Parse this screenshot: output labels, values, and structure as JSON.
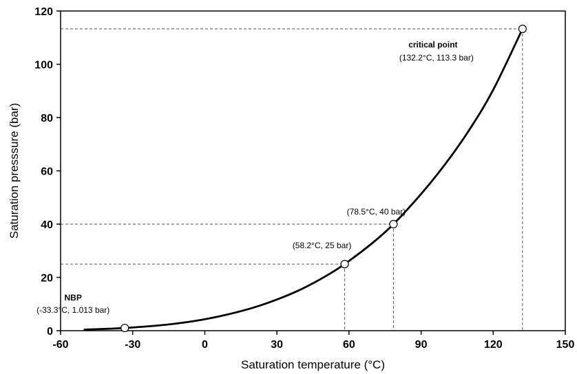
{
  "chart_data": {
    "type": "line",
    "xlabel": "Saturation temperature (°C)",
    "ylabel": "Saturation presssure (bar)",
    "xlim": [
      -60,
      150
    ],
    "ylim": [
      0,
      120
    ],
    "x_ticks": [
      -60,
      -30,
      0,
      30,
      60,
      90,
      120,
      150
    ],
    "y_ticks": [
      0,
      20,
      40,
      60,
      80,
      100,
      120
    ],
    "grid": false,
    "legend": "none",
    "series": [
      {
        "x": [
          -50,
          -40,
          -33.3,
          -20,
          -10,
          0,
          10,
          20,
          30,
          40,
          50,
          58.2,
          70,
          78.5,
          90,
          100,
          110,
          120,
          132.2
        ],
        "y": [
          0.41,
          0.72,
          1.013,
          1.9,
          2.9,
          4.3,
          6.2,
          8.6,
          11.7,
          15.5,
          20.3,
          25,
          33.1,
          40,
          51.3,
          62.5,
          75.3,
          90.4,
          113.3
        ],
        "color": "#000000"
      }
    ],
    "markers": [
      {
        "x": -33.3,
        "y": 1.013,
        "title": "NBP",
        "label": "(-33.3°C, 1.013 bar)",
        "guides": false
      },
      {
        "x": 58.2,
        "y": 25,
        "title": "",
        "label": "(58.2°C, 25 bar)",
        "guides": true
      },
      {
        "x": 78.5,
        "y": 40,
        "title": "",
        "label": "(78.5°C, 40 bar)",
        "guides": true
      },
      {
        "x": 132.2,
        "y": 113.3,
        "title": "critical point",
        "label": "(132.2°C, 113.3 bar)",
        "guides": true
      }
    ]
  }
}
